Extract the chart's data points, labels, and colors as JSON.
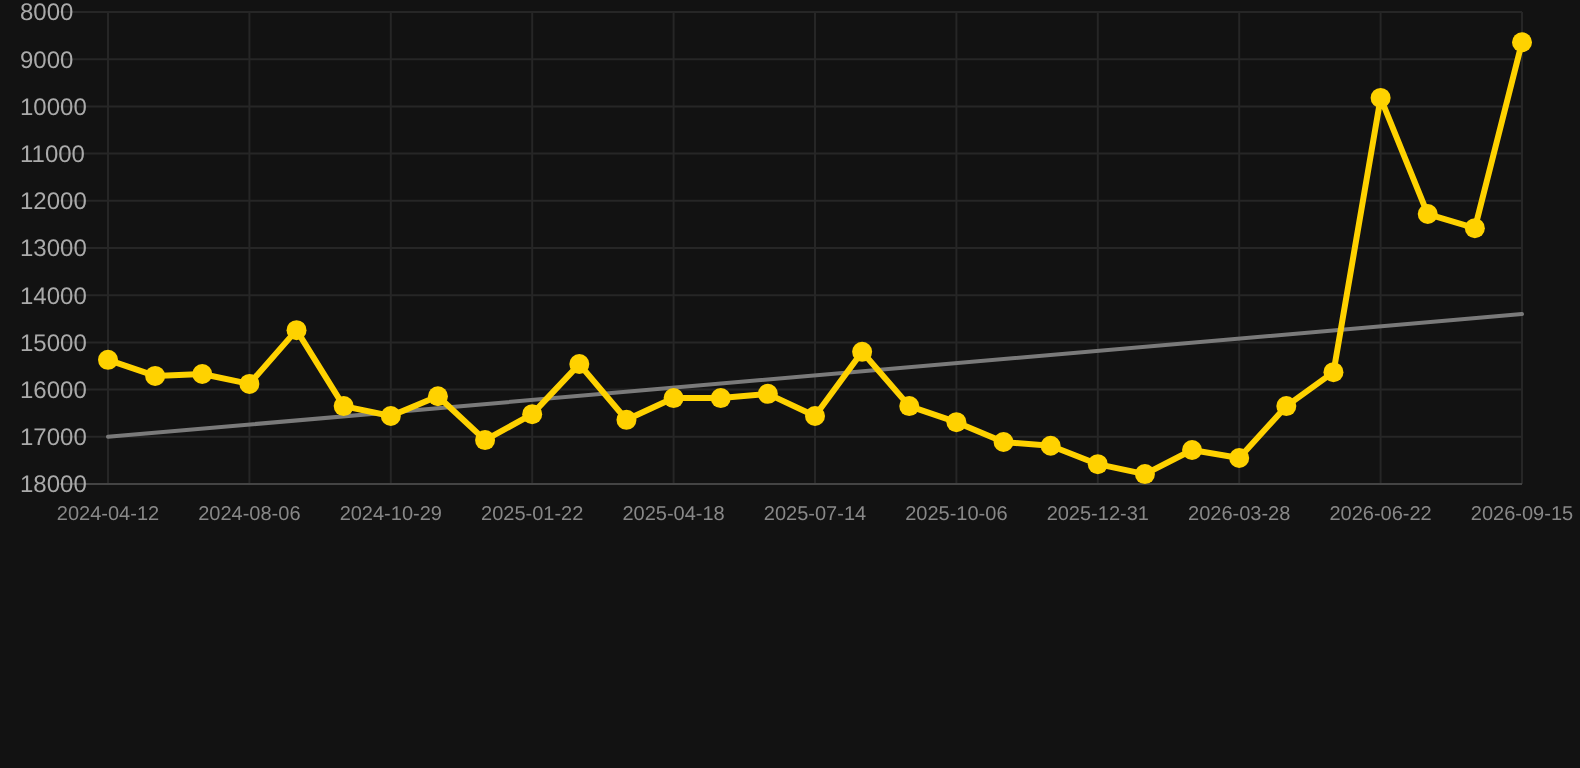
{
  "chart_data": {
    "type": "line",
    "categories": [
      "2024-04-12",
      null,
      null,
      "2024-08-06",
      null,
      null,
      "2024-10-29",
      null,
      null,
      "2025-01-22",
      null,
      null,
      "2025-04-18",
      null,
      null,
      "2025-07-14",
      null,
      null,
      "2025-10-06",
      null,
      null,
      "2025-12-31",
      null,
      null,
      "2026-03-28",
      null,
      null,
      "2026-06-22",
      null,
      null,
      "2026-09-15"
    ],
    "ylim": [
      18000,
      8000
    ],
    "yticks": [
      8000,
      9000,
      10000,
      11000,
      12000,
      13000,
      14000,
      15000,
      16000,
      17000,
      18000
    ],
    "grid": true,
    "marker": "circle",
    "series": [
      {
        "color": "#ffd200",
        "values": [
          15370,
          15710,
          15670,
          15880,
          14740,
          16350,
          16560,
          16140,
          17070,
          16520,
          15460,
          16640,
          16180,
          16180,
          16090,
          16560,
          15200,
          16350,
          16690,
          17110,
          17190,
          17580,
          17790,
          17280,
          17450,
          16350,
          15630,
          9820,
          12280,
          12580,
          8640
        ]
      },
      {
        "color": "#7a7a7a",
        "marker": "none",
        "values": [
          17000,
          null,
          null,
          null,
          null,
          null,
          null,
          null,
          null,
          null,
          null,
          null,
          null,
          null,
          null,
          null,
          null,
          null,
          null,
          null,
          null,
          null,
          null,
          null,
          null,
          null,
          null,
          null,
          null,
          null,
          14400
        ]
      }
    ]
  }
}
